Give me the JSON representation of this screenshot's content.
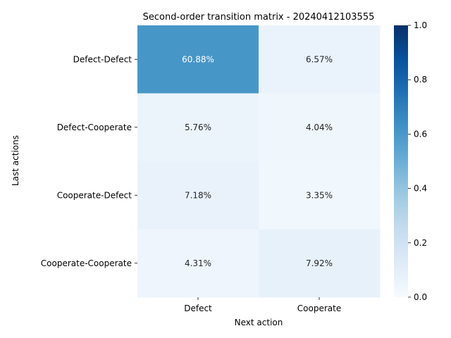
{
  "chart_data": {
    "type": "heatmap",
    "title": "Second-order transition matrix - 20240412103555",
    "xlabel": "Next action",
    "ylabel": "Last actions",
    "x_categories": [
      "Defect",
      "Cooperate"
    ],
    "y_categories": [
      "Defect-Defect",
      "Defect-Cooperate",
      "Cooperate-Defect",
      "Cooperate-Cooperate"
    ],
    "values": [
      [
        0.6088,
        0.0657
      ],
      [
        0.0576,
        0.0404
      ],
      [
        0.0718,
        0.0335
      ],
      [
        0.0431,
        0.0792
      ]
    ],
    "cell_labels": [
      [
        "60.88%",
        "6.57%"
      ],
      [
        "5.76%",
        "4.04%"
      ],
      [
        "7.18%",
        "3.35%"
      ],
      [
        "4.31%",
        "7.92%"
      ]
    ],
    "colorscale": "Blues",
    "colorbar": {
      "range": [
        0,
        1
      ],
      "ticks": [
        0.0,
        0.2,
        0.4,
        0.6,
        0.8,
        1.0
      ],
      "tick_labels": [
        "0.0",
        "0.2",
        "0.4",
        "0.6",
        "0.8",
        "1.0"
      ]
    }
  }
}
